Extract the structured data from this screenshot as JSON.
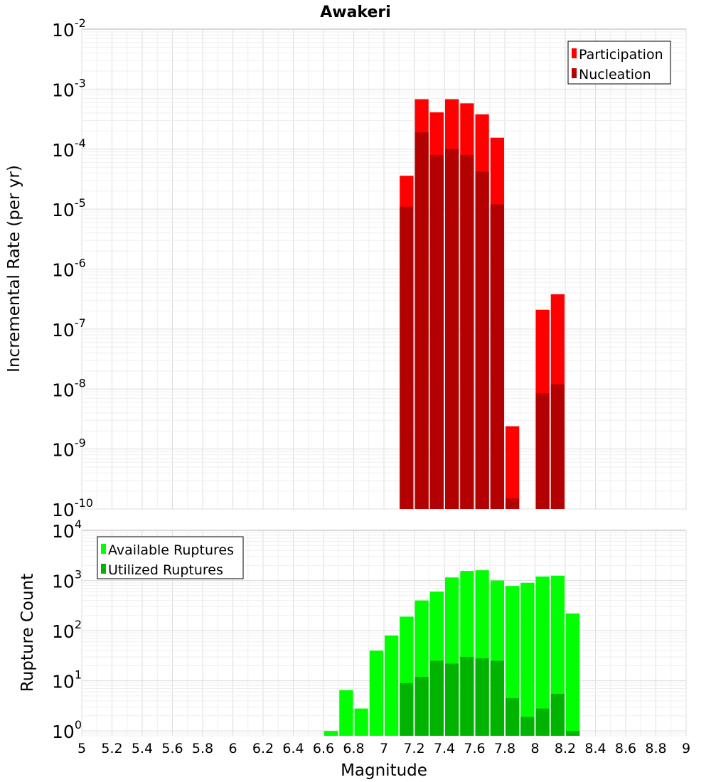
{
  "chart_data": [
    {
      "type": "bar",
      "title": "Awakeri",
      "xlabel": "Magnitude",
      "ylabel": "Incremental Rate (per yr)",
      "yscale": "log",
      "ylim": [
        1e-10,
        0.01
      ],
      "xlim": [
        5,
        9
      ],
      "bar_width": 0.1,
      "grid": true,
      "legend_position": "top-right",
      "series": [
        {
          "name": "Participation",
          "color": "#ff0000",
          "x": [
            7.15,
            7.25,
            7.35,
            7.45,
            7.55,
            7.65,
            7.75,
            7.85,
            8.05,
            8.15
          ],
          "values": [
            3.6e-05,
            0.00068,
            0.00041,
            0.00068,
            0.00058,
            0.00038,
            0.000155,
            2.4e-09,
            2.1e-07,
            3.8e-07
          ]
        },
        {
          "name": "Nucleation",
          "color": "#b30000",
          "x": [
            7.15,
            7.25,
            7.35,
            7.45,
            7.55,
            7.65,
            7.75,
            7.85,
            8.05,
            8.15
          ],
          "values": [
            1.1e-05,
            0.00019,
            8e-05,
            0.0001,
            8e-05,
            4.2e-05,
            1.2e-05,
            1.5e-10,
            8.5e-09,
            1.2e-08
          ]
        }
      ]
    },
    {
      "type": "bar",
      "xlabel": "Magnitude",
      "ylabel": "Rupture Count",
      "yscale": "log",
      "ylim": [
        0.8,
        10000
      ],
      "xlim": [
        5,
        9
      ],
      "bar_width": 0.1,
      "grid": true,
      "legend_position": "top-left",
      "xticks": [
        "5",
        "5.2",
        "5.4",
        "5.6",
        "5.8",
        "6",
        "6.2",
        "6.4",
        "6.6",
        "6.8",
        "7",
        "7.2",
        "7.4",
        "7.6",
        "7.8",
        "8",
        "8.2",
        "8.4",
        "8.6",
        "8.8",
        "9"
      ],
      "series": [
        {
          "name": "Available Ruptures",
          "color": "#00ff00",
          "x": [
            6.65,
            6.75,
            6.85,
            6.95,
            7.05,
            7.15,
            7.25,
            7.35,
            7.45,
            7.55,
            7.65,
            7.75,
            7.85,
            7.95,
            8.05,
            8.15,
            8.25
          ],
          "values": [
            1,
            6.5,
            2.8,
            40,
            80,
            190,
            400,
            600,
            1150,
            1550,
            1600,
            1000,
            780,
            900,
            1200,
            1250,
            220
          ]
        },
        {
          "name": "Utilized Ruptures",
          "color": "#00b300",
          "x": [
            7.15,
            7.25,
            7.35,
            7.45,
            7.55,
            7.65,
            7.75,
            7.85,
            7.95,
            8.05,
            8.15,
            8.25
          ],
          "values": [
            9,
            12,
            25,
            22,
            30,
            28,
            25,
            4.5,
            1.9,
            2.8,
            5.5,
            1
          ]
        }
      ]
    }
  ]
}
